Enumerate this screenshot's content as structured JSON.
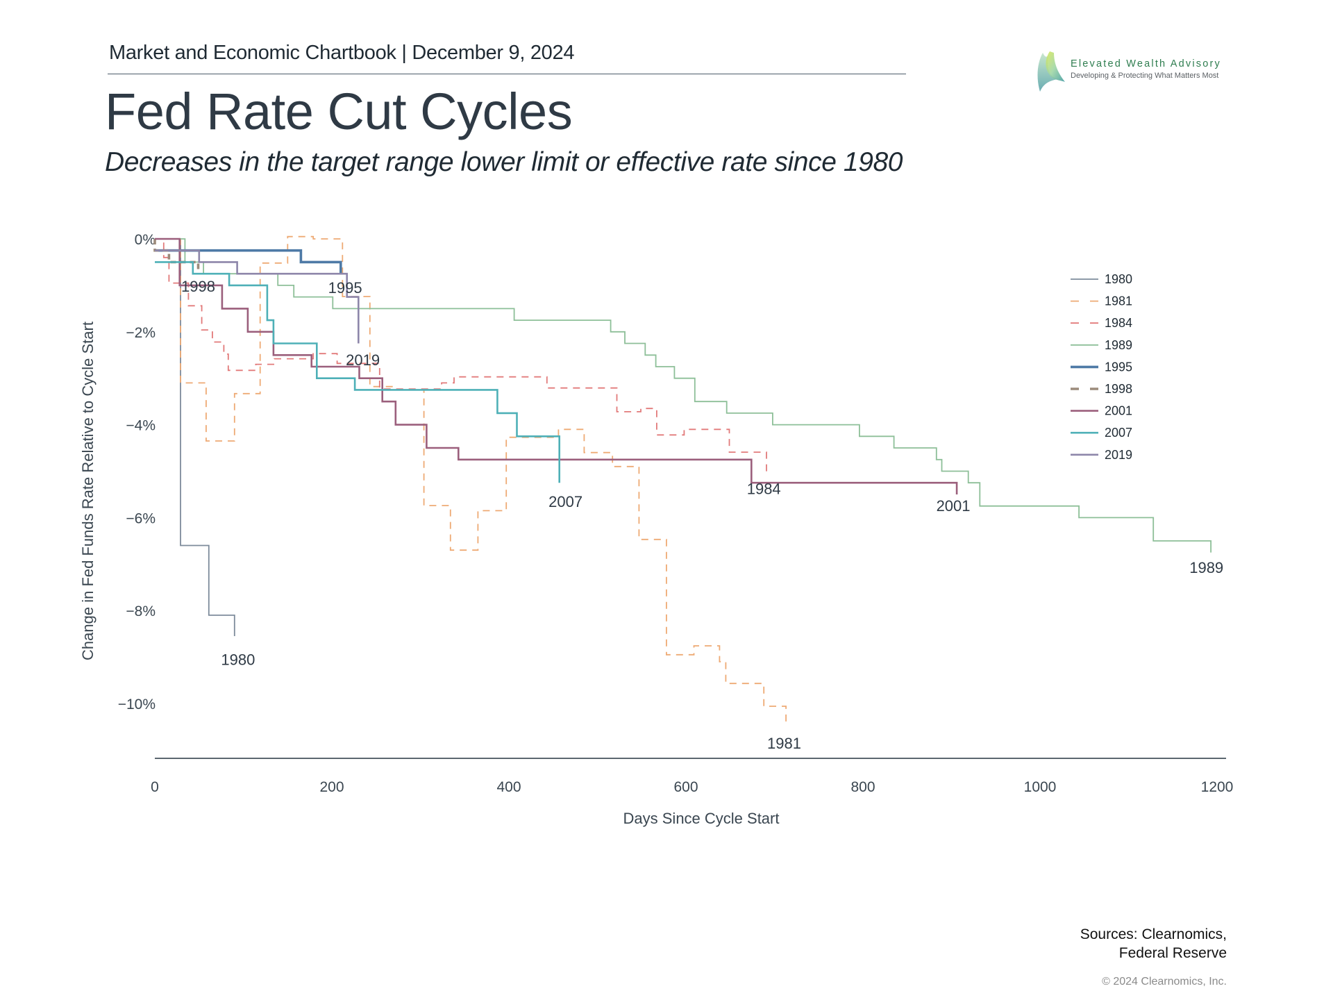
{
  "header": {
    "chartbook_line": "Market and Economic Chartbook | December 9, 2024",
    "title": "Fed Rate Cut Cycles",
    "subtitle": "Decreases in the target range lower limit or effective rate since 1980"
  },
  "logo": {
    "name": "Elevated Wealth Advisory",
    "tagline": "Developing & Protecting What Matters Most",
    "icon": "leaf-sail-logo-icon"
  },
  "footer": {
    "sources_line1": "Sources: Clearnomics,",
    "sources_line2": "Federal Reserve",
    "copyright": "© 2024 Clearnomics, Inc."
  },
  "chart_data": {
    "type": "line",
    "step": "post",
    "title": "Fed Rate Cut Cycles",
    "xlabel": "Days Since Cycle Start",
    "ylabel": "Change in Fed Funds Rate Relative to Cycle Start",
    "xlim": [
      0,
      1200
    ],
    "ylim": [
      -11.1,
      0.2
    ],
    "xticks": [
      0,
      200,
      400,
      600,
      800,
      1000,
      1200
    ],
    "xtick_labels": [
      "0",
      "200",
      "400",
      "600",
      "800",
      "1000",
      "1200"
    ],
    "yticks": [
      0,
      -2,
      -4,
      -6,
      -8,
      -10
    ],
    "ytick_labels": [
      "0%",
      "−2%",
      "−4%",
      "−6%",
      "−8%",
      "−10%"
    ],
    "grid": false,
    "legend_position": "right",
    "series": [
      {
        "name": "1980",
        "color": "#7d8b9b",
        "dash": "solid",
        "width": "normal",
        "label_at": [
          94,
          -9.05
        ],
        "points": [
          [
            0,
            0
          ],
          [
            29,
            0
          ],
          [
            29,
            -6.6
          ],
          [
            61,
            -6.6
          ],
          [
            61,
            -8.1
          ],
          [
            90,
            -8.1
          ],
          [
            90,
            -8.55
          ]
        ]
      },
      {
        "name": "1981",
        "color": "#eeaa74",
        "dash": "dashed",
        "width": "normal",
        "label_at": [
          711,
          -10.85
        ],
        "points": [
          [
            0,
            0
          ],
          [
            29,
            0
          ],
          [
            29,
            -3.1
          ],
          [
            58,
            -3.1
          ],
          [
            58,
            -4.35
          ],
          [
            90,
            -4.35
          ],
          [
            90,
            -3.33
          ],
          [
            119,
            -3.33
          ],
          [
            119,
            -0.52
          ],
          [
            150,
            -0.52
          ],
          [
            150,
            0.05
          ],
          [
            179,
            0.05
          ],
          [
            179,
            0
          ],
          [
            212,
            0
          ],
          [
            212,
            -1.24
          ],
          [
            243,
            -1.24
          ],
          [
            243,
            -3.18
          ],
          [
            272,
            -3.18
          ],
          [
            272,
            -3.25
          ],
          [
            304,
            -3.25
          ],
          [
            304,
            -5.74
          ],
          [
            334,
            -5.74
          ],
          [
            334,
            -6.7
          ],
          [
            365,
            -6.7
          ],
          [
            365,
            -5.85
          ],
          [
            397,
            -5.85
          ],
          [
            397,
            -4.27
          ],
          [
            456,
            -4.27
          ],
          [
            456,
            -4.1
          ],
          [
            485,
            -4.1
          ],
          [
            485,
            -4.6
          ],
          [
            517,
            -4.6
          ],
          [
            517,
            -4.9
          ],
          [
            547,
            -4.9
          ],
          [
            547,
            -6.47
          ],
          [
            578,
            -6.47
          ],
          [
            578,
            -8.95
          ],
          [
            609,
            -8.95
          ],
          [
            609,
            -8.76
          ],
          [
            638,
            -8.76
          ],
          [
            638,
            -9.1
          ],
          [
            645,
            -9.1
          ],
          [
            645,
            -9.57
          ],
          [
            688,
            -9.57
          ],
          [
            688,
            -10.06
          ],
          [
            713,
            -10.06
          ],
          [
            713,
            -10.4
          ]
        ]
      },
      {
        "name": "1984",
        "color": "#e27a7a",
        "dash": "dashed",
        "width": "normal",
        "label_at": [
          688,
          -5.37
        ],
        "points": [
          [
            0,
            0
          ],
          [
            10,
            0
          ],
          [
            10,
            -0.4
          ],
          [
            16,
            -0.4
          ],
          [
            16,
            -0.95
          ],
          [
            38,
            -0.95
          ],
          [
            38,
            -1.44
          ],
          [
            53,
            -1.44
          ],
          [
            53,
            -1.96
          ],
          [
            65,
            -1.96
          ],
          [
            65,
            -2.22
          ],
          [
            78,
            -2.22
          ],
          [
            78,
            -2.48
          ],
          [
            83,
            -2.48
          ],
          [
            83,
            -2.83
          ],
          [
            114,
            -2.83
          ],
          [
            114,
            -2.7
          ],
          [
            135,
            -2.7
          ],
          [
            135,
            -2.58
          ],
          [
            179,
            -2.58
          ],
          [
            179,
            -2.47
          ],
          [
            206,
            -2.47
          ],
          [
            206,
            -2.68
          ],
          [
            254,
            -2.68
          ],
          [
            254,
            -3.23
          ],
          [
            324,
            -3.23
          ],
          [
            324,
            -3.1
          ],
          [
            338,
            -3.1
          ],
          [
            338,
            -2.97
          ],
          [
            443,
            -2.97
          ],
          [
            443,
            -3.21
          ],
          [
            522,
            -3.21
          ],
          [
            522,
            -3.72
          ],
          [
            549,
            -3.72
          ],
          [
            549,
            -3.65
          ],
          [
            567,
            -3.65
          ],
          [
            567,
            -4.22
          ],
          [
            598,
            -4.22
          ],
          [
            598,
            -4.1
          ],
          [
            649,
            -4.1
          ],
          [
            649,
            -4.59
          ],
          [
            691,
            -4.59
          ],
          [
            691,
            -5.1
          ]
        ]
      },
      {
        "name": "1989",
        "color": "#8dbf98",
        "dash": "solid",
        "width": "normal",
        "label_at": [
          1188,
          -7.07
        ],
        "points": [
          [
            0,
            0
          ],
          [
            34,
            0
          ],
          [
            34,
            -0.5
          ],
          [
            55,
            -0.5
          ],
          [
            55,
            -0.75
          ],
          [
            139,
            -0.75
          ],
          [
            139,
            -1.0
          ],
          [
            157,
            -1.0
          ],
          [
            157,
            -1.25
          ],
          [
            201,
            -1.25
          ],
          [
            201,
            -1.5
          ],
          [
            406,
            -1.5
          ],
          [
            406,
            -1.75
          ],
          [
            515,
            -1.75
          ],
          [
            515,
            -2.0
          ],
          [
            531,
            -2.0
          ],
          [
            531,
            -2.25
          ],
          [
            554,
            -2.25
          ],
          [
            554,
            -2.5
          ],
          [
            566,
            -2.5
          ],
          [
            566,
            -2.75
          ],
          [
            587,
            -2.75
          ],
          [
            587,
            -3.0
          ],
          [
            610,
            -3.0
          ],
          [
            610,
            -3.5
          ],
          [
            646,
            -3.5
          ],
          [
            646,
            -3.75
          ],
          [
            698,
            -3.75
          ],
          [
            698,
            -4.0
          ],
          [
            796,
            -4.0
          ],
          [
            796,
            -4.25
          ],
          [
            835,
            -4.25
          ],
          [
            835,
            -4.5
          ],
          [
            883,
            -4.5
          ],
          [
            883,
            -4.75
          ],
          [
            889,
            -4.75
          ],
          [
            889,
            -5.0
          ],
          [
            919,
            -5.0
          ],
          [
            919,
            -5.25
          ],
          [
            932,
            -5.25
          ],
          [
            932,
            -5.75
          ],
          [
            1044,
            -5.75
          ],
          [
            1044,
            -6.0
          ],
          [
            1128,
            -6.0
          ],
          [
            1128,
            -6.5
          ],
          [
            1193,
            -6.5
          ],
          [
            1193,
            -6.75
          ]
        ]
      },
      {
        "name": "1995",
        "color": "#4e7aa6",
        "dash": "solid",
        "width": "thick",
        "label_at": [
          215,
          -1.05
        ],
        "points": [
          [
            0,
            -0.25
          ],
          [
            165,
            -0.25
          ],
          [
            165,
            -0.5
          ],
          [
            210,
            -0.5
          ],
          [
            210,
            -0.75
          ]
        ]
      },
      {
        "name": "1998",
        "color": "#9c8b7b",
        "dash": "dashed",
        "width": "thick",
        "label_at": [
          49,
          -1.02
        ],
        "points": [
          [
            0,
            0
          ],
          [
            0,
            -0.25
          ],
          [
            16,
            -0.25
          ],
          [
            16,
            -0.5
          ],
          [
            49,
            -0.5
          ],
          [
            49,
            -0.75
          ]
        ]
      },
      {
        "name": "2001",
        "color": "#9b5f7c",
        "dash": "solid",
        "width": "medium",
        "label_at": [
          902,
          -5.74
        ],
        "points": [
          [
            0,
            0
          ],
          [
            28,
            0
          ],
          [
            28,
            -1.0
          ],
          [
            76,
            -1.0
          ],
          [
            76,
            -1.5
          ],
          [
            105,
            -1.5
          ],
          [
            105,
            -2.0
          ],
          [
            134,
            -2.0
          ],
          [
            134,
            -2.5
          ],
          [
            177,
            -2.5
          ],
          [
            177,
            -2.75
          ],
          [
            231,
            -2.75
          ],
          [
            231,
            -3.0
          ],
          [
            257,
            -3.0
          ],
          [
            257,
            -3.5
          ],
          [
            272,
            -3.5
          ],
          [
            272,
            -4.0
          ],
          [
            307,
            -4.0
          ],
          [
            307,
            -4.5
          ],
          [
            343,
            -4.5
          ],
          [
            343,
            -4.75
          ],
          [
            674,
            -4.75
          ],
          [
            674,
            -5.25
          ],
          [
            906,
            -5.25
          ],
          [
            906,
            -5.5
          ]
        ]
      },
      {
        "name": "2007",
        "color": "#4eb0b7",
        "dash": "solid",
        "width": "medium",
        "label_at": [
          464,
          -5.65
        ],
        "points": [
          [
            0,
            -0.5
          ],
          [
            43,
            -0.5
          ],
          [
            43,
            -0.75
          ],
          [
            84,
            -0.75
          ],
          [
            84,
            -1.0
          ],
          [
            127,
            -1.0
          ],
          [
            127,
            -1.75
          ],
          [
            134,
            -1.75
          ],
          [
            134,
            -2.25
          ],
          [
            183,
            -2.25
          ],
          [
            183,
            -3.0
          ],
          [
            226,
            -3.0
          ],
          [
            226,
            -3.25
          ],
          [
            387,
            -3.25
          ],
          [
            387,
            -3.75
          ],
          [
            409,
            -3.75
          ],
          [
            409,
            -4.25
          ],
          [
            457,
            -4.25
          ],
          [
            457,
            -5.25
          ]
        ]
      },
      {
        "name": "2019",
        "color": "#8d86aa",
        "dash": "solid",
        "width": "medium",
        "label_at": [
          235,
          -2.6
        ],
        "points": [
          [
            0,
            -0.25
          ],
          [
            50,
            -0.25
          ],
          [
            50,
            -0.5
          ],
          [
            93,
            -0.5
          ],
          [
            93,
            -0.75
          ],
          [
            217,
            -0.75
          ],
          [
            217,
            -1.25
          ],
          [
            230,
            -1.25
          ],
          [
            230,
            -2.25
          ]
        ]
      }
    ]
  }
}
